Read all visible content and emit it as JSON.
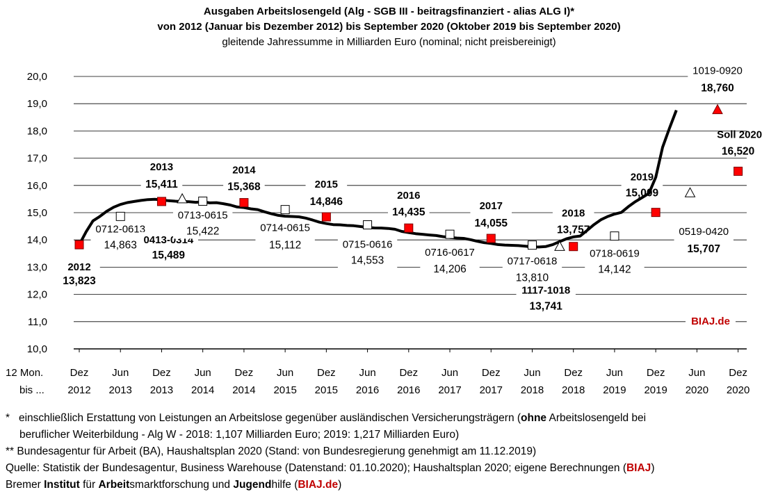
{
  "chart_data": {
    "type": "line",
    "title": "Ausgaben Arbeitslosengeld (Alg - SGB III - beitragsfinanziert - alias ALG I)*",
    "subtitle": "von 2012 (Januar bis Dezember 2012) bis September 2020 (Oktober 2019 bis September 2020)",
    "subtitle2": "gleitende Jahressumme in Milliarden Euro (nominal; nicht preisbereinigt)",
    "ylim": [
      10,
      20
    ],
    "y_ticks": [
      "10,0",
      "11,0",
      "12,0",
      "13,0",
      "14,0",
      "15,0",
      "16,0",
      "17,0",
      "18,0",
      "19,0",
      "20,0"
    ],
    "x_axis_caption": [
      "12 Mon.",
      "bis ..."
    ],
    "x_ticks": [
      [
        "Dez",
        "2012"
      ],
      [
        "Jun",
        "2013"
      ],
      [
        "Dez",
        "2013"
      ],
      [
        "Jun",
        "2014"
      ],
      [
        "Dez",
        "2014"
      ],
      [
        "Jun",
        "2015"
      ],
      [
        "Dez",
        "2015"
      ],
      [
        "Jun",
        "2016"
      ],
      [
        "Dez",
        "2016"
      ],
      [
        "Jun",
        "2017"
      ],
      [
        "Dez",
        "2017"
      ],
      [
        "Jun",
        "2018"
      ],
      [
        "Dez",
        "2018"
      ],
      [
        "Jun",
        "2019"
      ],
      [
        "Dez",
        "2019"
      ],
      [
        "Jun",
        "2020"
      ],
      [
        "Dez",
        "2020"
      ]
    ],
    "series": [
      {
        "values": [
          [
            0,
            13.823
          ],
          [
            1,
            14.3
          ],
          [
            2,
            14.7
          ],
          [
            3,
            14.863
          ],
          [
            4,
            15.05
          ],
          [
            5,
            15.2
          ],
          [
            6,
            15.3
          ],
          [
            7,
            15.37
          ],
          [
            8,
            15.411
          ],
          [
            9,
            15.45
          ],
          [
            10,
            15.48
          ],
          [
            11,
            15.489
          ],
          [
            12,
            15.47
          ],
          [
            13,
            15.44
          ],
          [
            14,
            15.422
          ],
          [
            15,
            15.41
          ],
          [
            16,
            15.4
          ],
          [
            17,
            15.38
          ],
          [
            18,
            15.4
          ],
          [
            19,
            15.36
          ],
          [
            20,
            15.368
          ],
          [
            21,
            15.33
          ],
          [
            22,
            15.28
          ],
          [
            23,
            15.21
          ],
          [
            24,
            15.19
          ],
          [
            25,
            15.14
          ],
          [
            26,
            15.112
          ],
          [
            27,
            15.03
          ],
          [
            28,
            14.96
          ],
          [
            29,
            14.9
          ],
          [
            30,
            14.87
          ],
          [
            31,
            14.86
          ],
          [
            32,
            14.846
          ],
          [
            33,
            14.8
          ],
          [
            34,
            14.73
          ],
          [
            35,
            14.65
          ],
          [
            36,
            14.6
          ],
          [
            37,
            14.56
          ],
          [
            38,
            14.553
          ],
          [
            39,
            14.53
          ],
          [
            40,
            14.52
          ],
          [
            41,
            14.49
          ],
          [
            42,
            14.46
          ],
          [
            43,
            14.44
          ],
          [
            44,
            14.435
          ],
          [
            45,
            14.42
          ],
          [
            46,
            14.39
          ],
          [
            47,
            14.31
          ],
          [
            48,
            14.27
          ],
          [
            49,
            14.23
          ],
          [
            50,
            14.206
          ],
          [
            51,
            14.18
          ],
          [
            52,
            14.16
          ],
          [
            53,
            14.12
          ],
          [
            54,
            14.09
          ],
          [
            55,
            14.07
          ],
          [
            56,
            14.055
          ],
          [
            57,
            14.01
          ],
          [
            58,
            13.95
          ],
          [
            59,
            13.9
          ],
          [
            60,
            13.87
          ],
          [
            61,
            13.83
          ],
          [
            62,
            13.81
          ],
          [
            63,
            13.8
          ],
          [
            64,
            13.79
          ],
          [
            65,
            13.77
          ],
          [
            66,
            13.745
          ],
          [
            67,
            13.741
          ],
          [
            68,
            13.757
          ],
          [
            69,
            13.83
          ],
          [
            70,
            13.94
          ],
          [
            71,
            14.04
          ],
          [
            72,
            14.11
          ],
          [
            73,
            14.142
          ],
          [
            74,
            14.35
          ],
          [
            75,
            14.56
          ],
          [
            76,
            14.74
          ],
          [
            77,
            14.86
          ],
          [
            78,
            14.95
          ],
          [
            79,
            15.009
          ],
          [
            80,
            15.22
          ],
          [
            81,
            15.4
          ],
          [
            82,
            15.55
          ],
          [
            83,
            15.707
          ],
          [
            84,
            16.3
          ],
          [
            85,
            17.4
          ],
          [
            86,
            18.1
          ],
          [
            87,
            18.76
          ]
        ]
      }
    ],
    "planned": {
      "label": "Soll 2020",
      "value": "16,520",
      "y": 16.52,
      "month": 96,
      "color": "#ff0000"
    },
    "markers": [
      {
        "month": 0,
        "y": 13.823,
        "shape": "square-red"
      },
      {
        "month": 6,
        "y": 14.863,
        "shape": "square-white"
      },
      {
        "month": 12,
        "y": 15.411,
        "shape": "square-red"
      },
      {
        "month": 15,
        "y": 15.489,
        "shape": "triangle-white"
      },
      {
        "month": 18,
        "y": 15.422,
        "shape": "square-white"
      },
      {
        "month": 24,
        "y": 15.368,
        "shape": "square-red"
      },
      {
        "month": 30,
        "y": 15.112,
        "shape": "square-white"
      },
      {
        "month": 36,
        "y": 14.846,
        "shape": "square-red"
      },
      {
        "month": 42,
        "y": 14.553,
        "shape": "square-white"
      },
      {
        "month": 48,
        "y": 14.435,
        "shape": "square-red"
      },
      {
        "month": 54,
        "y": 14.206,
        "shape": "square-white"
      },
      {
        "month": 60,
        "y": 14.055,
        "shape": "square-red"
      },
      {
        "month": 66,
        "y": 13.81,
        "shape": "square-white"
      },
      {
        "month": 70,
        "y": 13.741,
        "shape": "triangle-white"
      },
      {
        "month": 72,
        "y": 13.757,
        "shape": "square-red"
      },
      {
        "month": 78,
        "y": 14.142,
        "shape": "square-white"
      },
      {
        "month": 84,
        "y": 15.009,
        "shape": "square-red"
      },
      {
        "month": 89,
        "y": 15.707,
        "shape": "triangle-white"
      },
      {
        "month": 93,
        "y": 18.76,
        "shape": "triangle-red"
      }
    ],
    "annotations": [
      {
        "lines": [
          "2012",
          "13,823"
        ],
        "bold": true,
        "anchor": "month",
        "month": 0,
        "dy": [
          37,
          57
        ]
      },
      {
        "lines": [
          "0712-0613",
          "14,863"
        ],
        "bold": false,
        "anchor": "month",
        "month": 6,
        "dy": [
          23,
          46
        ]
      },
      {
        "lines": [
          "2013",
          "15,411"
        ],
        "bold": true,
        "anchor": "month",
        "month": 12,
        "dy": [
          -45,
          -20
        ]
      },
      {
        "lines": [
          "0413-0314",
          "15,489"
        ],
        "bold": true,
        "anchor": "month",
        "month": 13,
        "dy": [
          61,
          83
        ]
      },
      {
        "lines": [
          "0713-0615",
          "15,422"
        ],
        "bold": false,
        "anchor": "month",
        "month": 18,
        "dy": [
          25,
          48
        ]
      },
      {
        "lines": [
          "2014",
          "15,368"
        ],
        "bold": true,
        "anchor": "month",
        "month": 24,
        "dy": [
          -42,
          -18
        ]
      },
      {
        "lines": [
          "0714-0615",
          "15,112"
        ],
        "bold": false,
        "anchor": "month",
        "month": 30,
        "dy": [
          31,
          56
        ]
      },
      {
        "lines": [
          "2015",
          "14,846"
        ],
        "bold": true,
        "anchor": "month",
        "month": 36,
        "dy": [
          -42,
          -17
        ]
      },
      {
        "lines": [
          "0715-0616",
          "14,553"
        ],
        "bold": false,
        "anchor": "month",
        "month": 42,
        "dy": [
          33,
          56
        ]
      },
      {
        "lines": [
          "2016",
          "14,435"
        ],
        "bold": true,
        "anchor": "month",
        "month": 48,
        "dy": [
          -42,
          -18
        ]
      },
      {
        "lines": [
          "0716-0617",
          "14,206"
        ],
        "bold": false,
        "anchor": "month",
        "month": 54,
        "dy": [
          31,
          55
        ]
      },
      {
        "lines": [
          "2017",
          "14,055"
        ],
        "bold": true,
        "anchor": "month",
        "month": 60,
        "dy": [
          -42,
          -17
        ]
      },
      {
        "lines": [
          "0717-0618",
          "13,810"
        ],
        "bold": false,
        "anchor": "month",
        "month": 66,
        "dy": [
          28,
          52
        ]
      },
      {
        "lines": [
          "1117-1018",
          "13,741"
        ],
        "bold": true,
        "anchor": "month",
        "month": 68,
        "dy": [
          68,
          91
        ]
      },
      {
        "lines": [
          "2018",
          "13,757"
        ],
        "bold": true,
        "anchor": "month",
        "month": 72,
        "dy": [
          -43,
          -19
        ]
      },
      {
        "lines": [
          "0718-0619",
          "14,142"
        ],
        "bold": false,
        "anchor": "month",
        "month": 78,
        "dy": [
          30,
          53
        ]
      },
      {
        "lines": [
          "2019",
          "15,009"
        ],
        "bold": true,
        "anchor": "month",
        "month": 82,
        "dy": [
          -25,
          -2
        ]
      },
      {
        "lines": [
          "0519-0420",
          "15,707"
        ],
        "bold": true,
        "anchor": "month",
        "month": 91,
        "dy": [
          32,
          57
        ],
        "mixed": true
      },
      {
        "lines": [
          "1019-0920",
          "18,760"
        ],
        "bold": true,
        "anchor": "month",
        "month": 93,
        "dy": [
          -52,
          -27
        ],
        "mixed": true
      }
    ],
    "watermark": "BIAJ.de",
    "grid": true,
    "line_color": "#000000",
    "red_marker_color": "#ff0000"
  },
  "footnotes": {
    "n1_star": "*",
    "n1_a": "einschließlich Erstattung von Leistungen an Arbeitslose gegenüber ausländischen Versicherungsträgern (",
    "n1_b": "ohne",
    "n1_c": " Arbeitslosengeld bei",
    "n1_d": "beruflicher Weiterbildung   - Alg W - 2018: 1,107 Milliarden Euro; 2019: 1,217 Milliarden Euro)",
    "n2": "** Bundesagentur für Arbeit (BA), Haushaltsplan 2020 (Stand: von Bundesregierung genehmigt am 11.12.2019)",
    "q_a": "Quelle: Statistik der Bundesagentur, Business Warehouse (Datenstand: 01.10.2020); Haushaltsplan 2020; eigene Berechnungen (",
    "q_b": "BIAJ",
    "q_c": ")",
    "b_1": "Bremer ",
    "b_2": "Institut",
    "b_3": " für ",
    "b_4": "Arbeit",
    "b_5": "smarktforschung und ",
    "b_6": "Jugend",
    "b_7": "hilfe (",
    "b_8": "BIAJ.de",
    "b_9": ")"
  }
}
